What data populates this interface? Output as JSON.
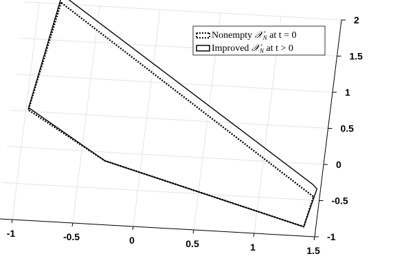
{
  "chart_data": {
    "type": "line",
    "projection": "3d",
    "title": "",
    "xlabel": "",
    "ylabel": "",
    "zlabel": "",
    "grid": true,
    "legend_position": "top-right",
    "xlim": [
      -1,
      1.5
    ],
    "zlim": [
      -1,
      2
    ],
    "x_ticks": [
      "-1",
      "-0.5",
      "0",
      "0.5",
      "1",
      "1.5"
    ],
    "z_ticks": [
      "-1",
      "-0.5",
      "0",
      "0.5",
      "1",
      "1.5",
      "2"
    ],
    "series": [
      {
        "name": "Nonempty 𝒳_N at t = 0",
        "line_style": "dotted",
        "color": "#000000",
        "points": [
          {
            "x": -0.82,
            "z": 2.02
          },
          {
            "x": -0.98,
            "z": 0.52
          },
          {
            "x": -0.3,
            "z": -0.12
          },
          {
            "x": 1.4,
            "z": -0.87
          },
          {
            "x": 1.45,
            "z": -0.45
          },
          {
            "x": -0.82,
            "z": 2.02
          }
        ]
      },
      {
        "name": "Improved 𝒳_N at t > 0",
        "line_style": "solid",
        "color": "#000000",
        "points": [
          {
            "x": -0.82,
            "z": 2.13
          },
          {
            "x": -0.98,
            "z": 0.55
          },
          {
            "x": -0.3,
            "z": -0.12
          },
          {
            "x": 1.4,
            "z": -0.87
          },
          {
            "x": 1.47,
            "z": -0.34
          },
          {
            "x": 1.43,
            "z": -0.28
          },
          {
            "x": -0.82,
            "z": 2.13
          }
        ]
      }
    ]
  },
  "legend": {
    "entries": [
      {
        "prefix": "Nonempty ",
        "set": "𝒳",
        "sub": "N",
        "condition": " at t = 0"
      },
      {
        "prefix": "Improved ",
        "set": "𝒳",
        "sub": "N",
        "condition": " at t > 0"
      }
    ]
  }
}
